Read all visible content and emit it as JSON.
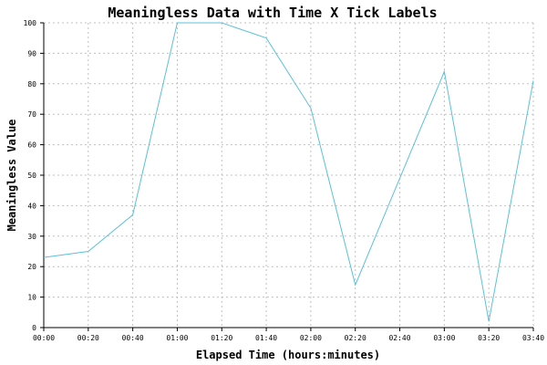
{
  "chart_data": {
    "type": "line",
    "title": "Meaningless Data with Time X Tick Labels",
    "xlabel": "Elapsed Time (hours:minutes)",
    "ylabel": "Meaningless Value",
    "x_tick_labels": [
      "00:00",
      "00:20",
      "00:40",
      "01:00",
      "01:20",
      "01:40",
      "02:00",
      "02:20",
      "02:40",
      "03:00",
      "03:20",
      "03:40"
    ],
    "x_minutes": [
      0,
      20,
      40,
      60,
      80,
      100,
      120,
      140,
      160,
      180,
      200,
      220
    ],
    "y_ticks": [
      0,
      10,
      20,
      30,
      40,
      50,
      60,
      70,
      80,
      90,
      100
    ],
    "xlim": [
      0,
      220
    ],
    "ylim": [
      0,
      100
    ],
    "grid": true,
    "series": [
      {
        "values": [
          23,
          25,
          37,
          100,
          100,
          95,
          72,
          14,
          49,
          84,
          2,
          81
        ]
      }
    ],
    "colors": {
      "line": "#5bc0de",
      "grid": "#c0c0c0",
      "axis": "#000000"
    }
  }
}
